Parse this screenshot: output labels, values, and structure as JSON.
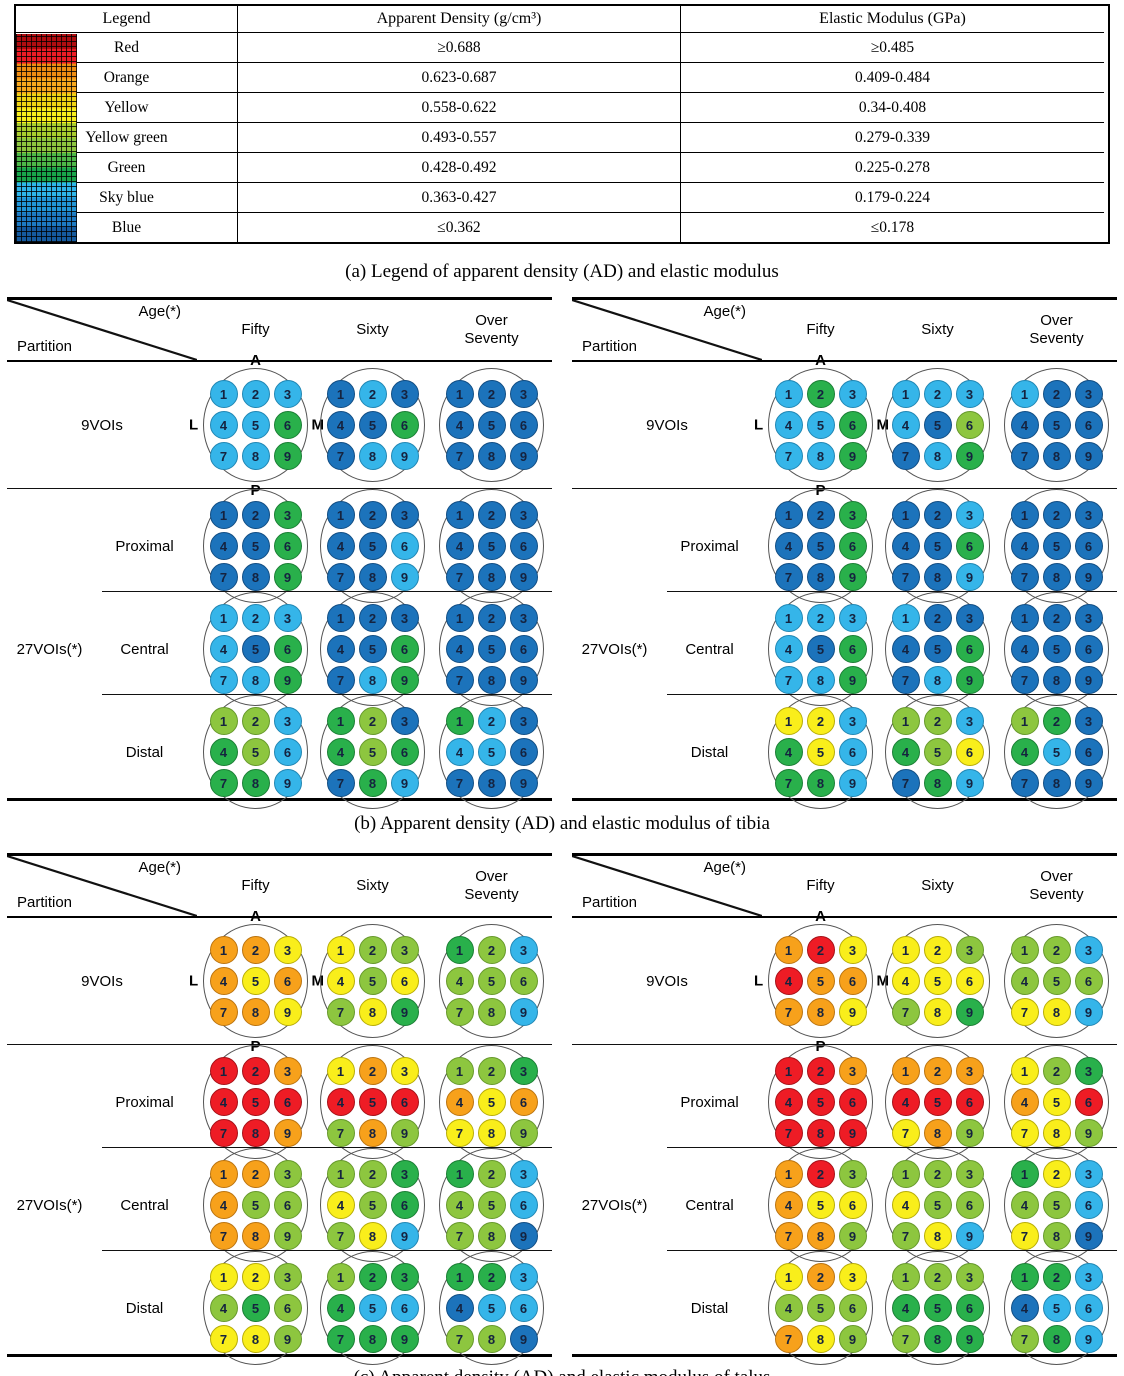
{
  "color_key": {
    "R": {
      "name": "Red",
      "fill": "#ee1c25",
      "border": "#a61118"
    },
    "O": {
      "name": "Orange",
      "fill": "#f7a11b",
      "border": "#bb7410"
    },
    "Y": {
      "name": "Yellow",
      "fill": "#f9ee1b",
      "border": "#b8ad07"
    },
    "G": {
      "name": "Yellow green",
      "fill": "#8dc63f",
      "border": "#67992c"
    },
    "E": {
      "name": "Green",
      "fill": "#29b04b",
      "border": "#1b7f35"
    },
    "S": {
      "name": "Sky blue",
      "fill": "#35b5e9",
      "border": "#2187b4"
    },
    "B": {
      "name": "Blue",
      "fill": "#1c73bb",
      "border": "#124e84"
    }
  },
  "legend": {
    "headers": [
      "Legend",
      "Apparent Density (g/cm³)",
      "Elastic Modulus (GPa)"
    ],
    "rows": [
      {
        "key": "R",
        "name": "Red",
        "density": "≥0.688",
        "modulus": "≥0.485"
      },
      {
        "key": "O",
        "name": "Orange",
        "density": "0.623-0.687",
        "modulus": "0.409-0.484"
      },
      {
        "key": "Y",
        "name": "Yellow",
        "density": "0.558-0.622",
        "modulus": "0.34-0.408"
      },
      {
        "key": "G",
        "name": "Yellow green",
        "density": "0.493-0.557",
        "modulus": "0.279-0.339"
      },
      {
        "key": "E",
        "name": "Green",
        "density": "0.428-0.492",
        "modulus": "0.225-0.278"
      },
      {
        "key": "S",
        "name": "Sky blue",
        "density": "0.363-0.427",
        "modulus": "0.179-0.224"
      },
      {
        "key": "B",
        "name": "Blue",
        "density": "≤0.362",
        "modulus": "≤0.178"
      }
    ],
    "colorbar_stops": [
      "#b00d10",
      "#ee1c25",
      "#ef8d12",
      "#f8a81d",
      "#f0d414",
      "#f9ef1c",
      "#aacd2e",
      "#8dc63f",
      "#4db848",
      "#19a64a",
      "#2eb6ea",
      "#2196d8",
      "#1d7ac2",
      "#155a9e"
    ]
  },
  "captions": {
    "a": "(a) Legend of apparent density (AD) and elastic modulus",
    "b": "(b) Apparent density (AD) and elastic modulus of tibia",
    "c": "(c) Apparent density (AD) and elastic modulus of talus"
  },
  "panel_header": {
    "age_label": "Age(*)",
    "partition_label": "Partition",
    "columns": [
      "Fifty",
      "Sixty",
      "Over\nSeventy"
    ]
  },
  "vois27_label": "27VOIs(*)",
  "orientation": {
    "top": "A",
    "bottom": "P",
    "left": "L",
    "right": "M"
  },
  "panels": [
    {
      "id": "tibia-apparent-density",
      "rows": [
        {
          "label": "9VOIs",
          "groups": [
            "SSSSSESSE",
            "BSBBBEBSS",
            "BBBBBBBBB"
          ]
        },
        {
          "label": "Proximal",
          "groups": [
            "BBEBBEBBE",
            "BBBBBSBBS",
            "BBBBBBBBB"
          ]
        },
        {
          "label": "Central",
          "groups": [
            "SSSSBESSE",
            "BBBBBEBSE",
            "BBBBBBBBB"
          ]
        },
        {
          "label": "Distal",
          "groups": [
            "GGSEGSEES",
            "EGBEGEBES",
            "ESBSSBBBB"
          ]
        }
      ]
    },
    {
      "id": "tibia-elastic-modulus",
      "rows": [
        {
          "label": "9VOIs",
          "groups": [
            "SESSSESSE",
            "SSSSBGBSE",
            "SBBBBBBBB"
          ]
        },
        {
          "label": "Proximal",
          "groups": [
            "BBEBBEBBE",
            "BBSBBEBBS",
            "BBBBBBBBB"
          ]
        },
        {
          "label": "Central",
          "groups": [
            "SSSSBESSE",
            "SBBBBEBSE",
            "BBBBBBBBB"
          ]
        },
        {
          "label": "Distal",
          "groups": [
            "YYSEYSEES",
            "GGSEGYBES",
            "GEBESBBBB"
          ]
        }
      ]
    },
    {
      "id": "talus-apparent-density",
      "rows": [
        {
          "label": "9VOIs",
          "groups": [
            "OOYOYOOOY",
            "YGGYGYGYE",
            "EGSGGGGGS"
          ]
        },
        {
          "label": "Proximal",
          "groups": [
            "RRORRRRRO",
            "YOYRRRGOG",
            "GGEOYOYYG"
          ]
        },
        {
          "label": "Central",
          "groups": [
            "OOGOGGOOG",
            "GGEYGEGYS",
            "EGSGGSGGB"
          ]
        },
        {
          "label": "Distal",
          "groups": [
            "YYGGEGYYG",
            "GEEESSEEE",
            "EESBSSGGB"
          ]
        }
      ]
    },
    {
      "id": "talus-elastic-modulus",
      "rows": [
        {
          "label": "9VOIs",
          "groups": [
            "ORYROOOOY",
            "YYGYYYGYE",
            "GGSGGGYYS"
          ]
        },
        {
          "label": "Proximal",
          "groups": [
            "RRORRRRRR",
            "OOORRRYOG",
            "YGEOYRYYG"
          ]
        },
        {
          "label": "Central",
          "groups": [
            "ORGOYYOOG",
            "GGGYGGGYS",
            "EYSGGSYGB"
          ]
        },
        {
          "label": "Distal",
          "groups": [
            "YOYGGGOYG",
            "GGGEEEGEE",
            "EESBSSGES"
          ]
        }
      ]
    }
  ]
}
